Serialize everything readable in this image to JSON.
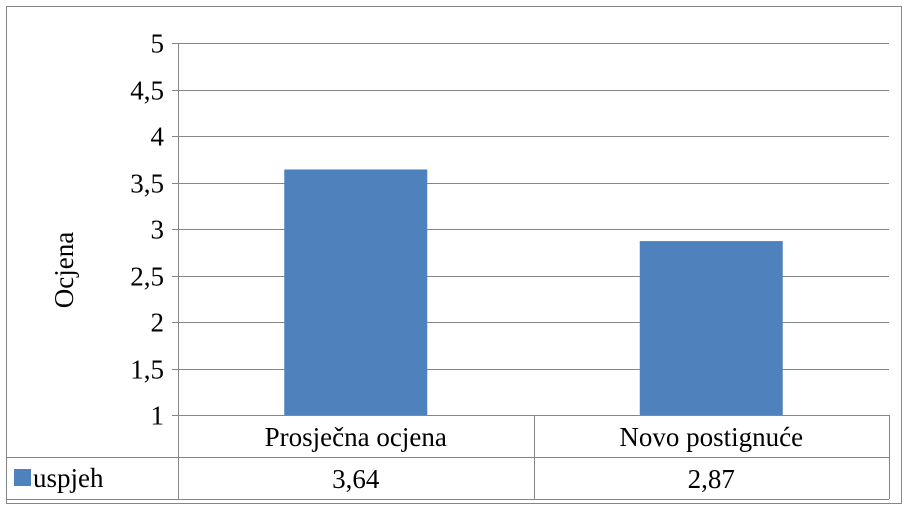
{
  "chart_data": {
    "type": "bar",
    "title": "",
    "xlabel": "",
    "ylabel": "Ocjena",
    "ylim": [
      1,
      5
    ],
    "yticks": [
      1,
      1.5,
      2,
      2.5,
      3,
      3.5,
      4,
      4.5,
      5
    ],
    "ytick_labels": [
      "1",
      "1,5",
      "2",
      "2,5",
      "3",
      "3,5",
      "4",
      "4,5",
      "5"
    ],
    "categories": [
      "Prosječna ocjena",
      "Novo postignuće"
    ],
    "series": [
      {
        "name": "uspjeh",
        "values": [
          3.64,
          2.87
        ],
        "value_labels": [
          "3,64",
          "2,87"
        ],
        "color": "#4F81BD"
      }
    ],
    "grid": true,
    "legend": "data-table-left",
    "data_table": true
  }
}
